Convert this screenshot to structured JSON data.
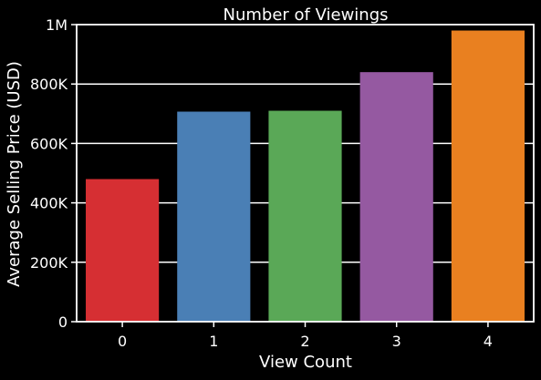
{
  "chart_data": {
    "type": "bar",
    "title": "Number of Viewings",
    "xlabel": "View Count",
    "ylabel": "Average Selling Price (USD)",
    "categories": [
      "0",
      "1",
      "2",
      "3",
      "4"
    ],
    "values": [
      480000,
      707000,
      710000,
      840000,
      980000
    ],
    "colors": [
      "#d62f33",
      "#4a7fb5",
      "#5aa857",
      "#9559a1",
      "#e98020"
    ],
    "ylim": [
      0,
      1000000
    ],
    "yticks": [
      0,
      200000,
      400000,
      600000,
      800000,
      1000000
    ],
    "ytick_labels": [
      "0",
      "200K",
      "400K",
      "600K",
      "800K",
      "1M"
    ],
    "grid": "horizontal"
  },
  "theme": {
    "background": "#000000",
    "foreground": "#ffffff",
    "grid": "#ffffff"
  }
}
